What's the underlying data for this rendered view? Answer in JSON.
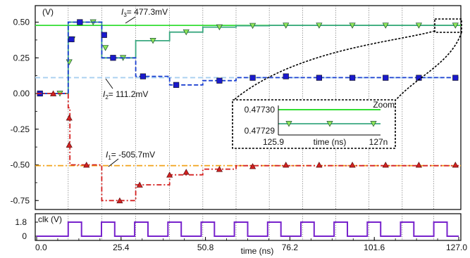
{
  "chart_data": {
    "type": "line",
    "main": {
      "yunit": "(V)",
      "xlim": [
        0,
        127
      ],
      "ylim": [
        -0.8,
        0.6
      ],
      "yticks": [
        -0.75,
        -0.5,
        -0.25,
        0.0,
        0.25,
        0.5
      ],
      "ytick_labels": [
        "-0.75",
        "-0.50",
        "-0.25",
        "0.00",
        "0.25",
        "0.50"
      ],
      "grid_x": [
        9.5,
        19.6,
        29.8,
        40.0,
        50.0,
        60.0,
        70.0,
        80.0,
        90.0,
        100.0,
        110.0,
        119.5
      ],
      "references": [
        {
          "id": "l3",
          "value": 0.4773,
          "label_sym": "I",
          "label_sub": "3",
          "label_text": "= 477.3mV",
          "color": "#33dd33",
          "dash": ""
        },
        {
          "id": "l2",
          "value": 0.1112,
          "label_sym": "I",
          "label_sub": "2",
          "label_text": "= 111.2mV",
          "color": "#a8cff0",
          "dash": "7,4"
        },
        {
          "id": "l1",
          "value": -0.5057,
          "label_sym": "I",
          "label_sub": "1",
          "label_text": "= -505.7mV",
          "color": "#f2a31a",
          "dash": "8,3,2,3"
        }
      ],
      "series": [
        {
          "id": "green",
          "color": "#3aa880",
          "marker": "triangle-down",
          "marker_fill": "#8ee65a",
          "dash": "",
          "x": [
            0,
            9.5,
            9.5,
            19.6,
            19.6,
            29.8,
            29.8,
            40.0,
            40.0,
            50.0,
            50.0,
            60.0,
            60.0,
            70.0,
            70.0,
            127
          ],
          "y": [
            0,
            0,
            0.5,
            0.5,
            0.25,
            0.25,
            0.37,
            0.37,
            0.43,
            0.43,
            0.465,
            0.465,
            0.475,
            0.475,
            0.4773,
            0.4773
          ],
          "marker_x": [
            7,
            9.8,
            10.7,
            17,
            20.7,
            26,
            35,
            45,
            55,
            65,
            75,
            85,
            95,
            105,
            115,
            126
          ],
          "marker_y": [
            0,
            0.22,
            0.38,
            0.5,
            0.32,
            0.25,
            0.37,
            0.43,
            0.465,
            0.475,
            0.477,
            0.477,
            0.477,
            0.477,
            0.477,
            0.477
          ]
        },
        {
          "id": "blue",
          "color": "#1a3fd0",
          "marker": "square",
          "marker_fill": "#1a1acc",
          "dash": "6,3",
          "x": [
            0,
            9.5,
            9.5,
            19.6,
            19.6,
            29.8,
            29.8,
            40.0,
            40.0,
            50.0,
            50.0,
            60.0,
            60.0,
            127
          ],
          "y": [
            0,
            0,
            0.5,
            0.5,
            0.25,
            0.25,
            0.12,
            0.12,
            0.06,
            0.06,
            0.09,
            0.09,
            0.1112,
            0.1112
          ],
          "marker_x": [
            1,
            10.5,
            13,
            20.3,
            23,
            32,
            42,
            55,
            65,
            75,
            85,
            95,
            105,
            115,
            126
          ],
          "marker_y": [
            0,
            0.38,
            0.5,
            0.41,
            0.25,
            0.12,
            0.06,
            0.09,
            0.11,
            0.12,
            0.11,
            0.11,
            0.11,
            0.11,
            0.11
          ]
        },
        {
          "id": "red",
          "color": "#d42020",
          "marker": "triangle-up",
          "marker_fill": "#d42020",
          "dash": "7,3,2,3",
          "x": [
            0,
            9.5,
            9.5,
            10.0,
            10.0,
            19.6,
            19.6,
            29.8,
            29.8,
            40.0,
            40.0,
            50.0,
            50.0,
            60.0,
            60.0,
            127
          ],
          "y": [
            0,
            0,
            -0.1,
            -0.1,
            -0.5,
            -0.5,
            -0.75,
            -0.75,
            -0.64,
            -0.64,
            -0.57,
            -0.57,
            -0.53,
            -0.53,
            -0.5057,
            -0.5057
          ],
          "marker_x": [
            5,
            9.8,
            9.8,
            15,
            25,
            31,
            40,
            45,
            55,
            65,
            75,
            85,
            95,
            105,
            115,
            126
          ],
          "marker_y": [
            0,
            -0.17,
            -0.36,
            -0.5,
            -0.75,
            -0.64,
            -0.57,
            -0.55,
            -0.53,
            -0.51,
            -0.5,
            -0.5,
            -0.5,
            -0.5,
            -0.5,
            -0.5
          ]
        }
      ]
    },
    "clock": {
      "label": "clk (V)",
      "yticks": [
        0,
        1.8
      ],
      "ytick_labels": [
        "0",
        "1.8"
      ],
      "high": 1.8,
      "period": 10.0,
      "first_rise": 9.5,
      "high_time": 4.0,
      "color": "#7722cc"
    },
    "xaxis": {
      "ticks": [
        0.0,
        25.4,
        50.8,
        76.2,
        101.6,
        127.0
      ],
      "tick_labels": [
        "0.0",
        "25.4",
        "50.8",
        "76.2",
        "101.6",
        "127.0"
      ],
      "xlabel": "time (ns)"
    },
    "zoom": {
      "title": "Zoom",
      "ytick_labels": [
        "0.47730",
        "0.47729"
      ],
      "xtick_labels": [
        "125.9",
        "127n"
      ],
      "xlabel": "time (ns)"
    }
  }
}
